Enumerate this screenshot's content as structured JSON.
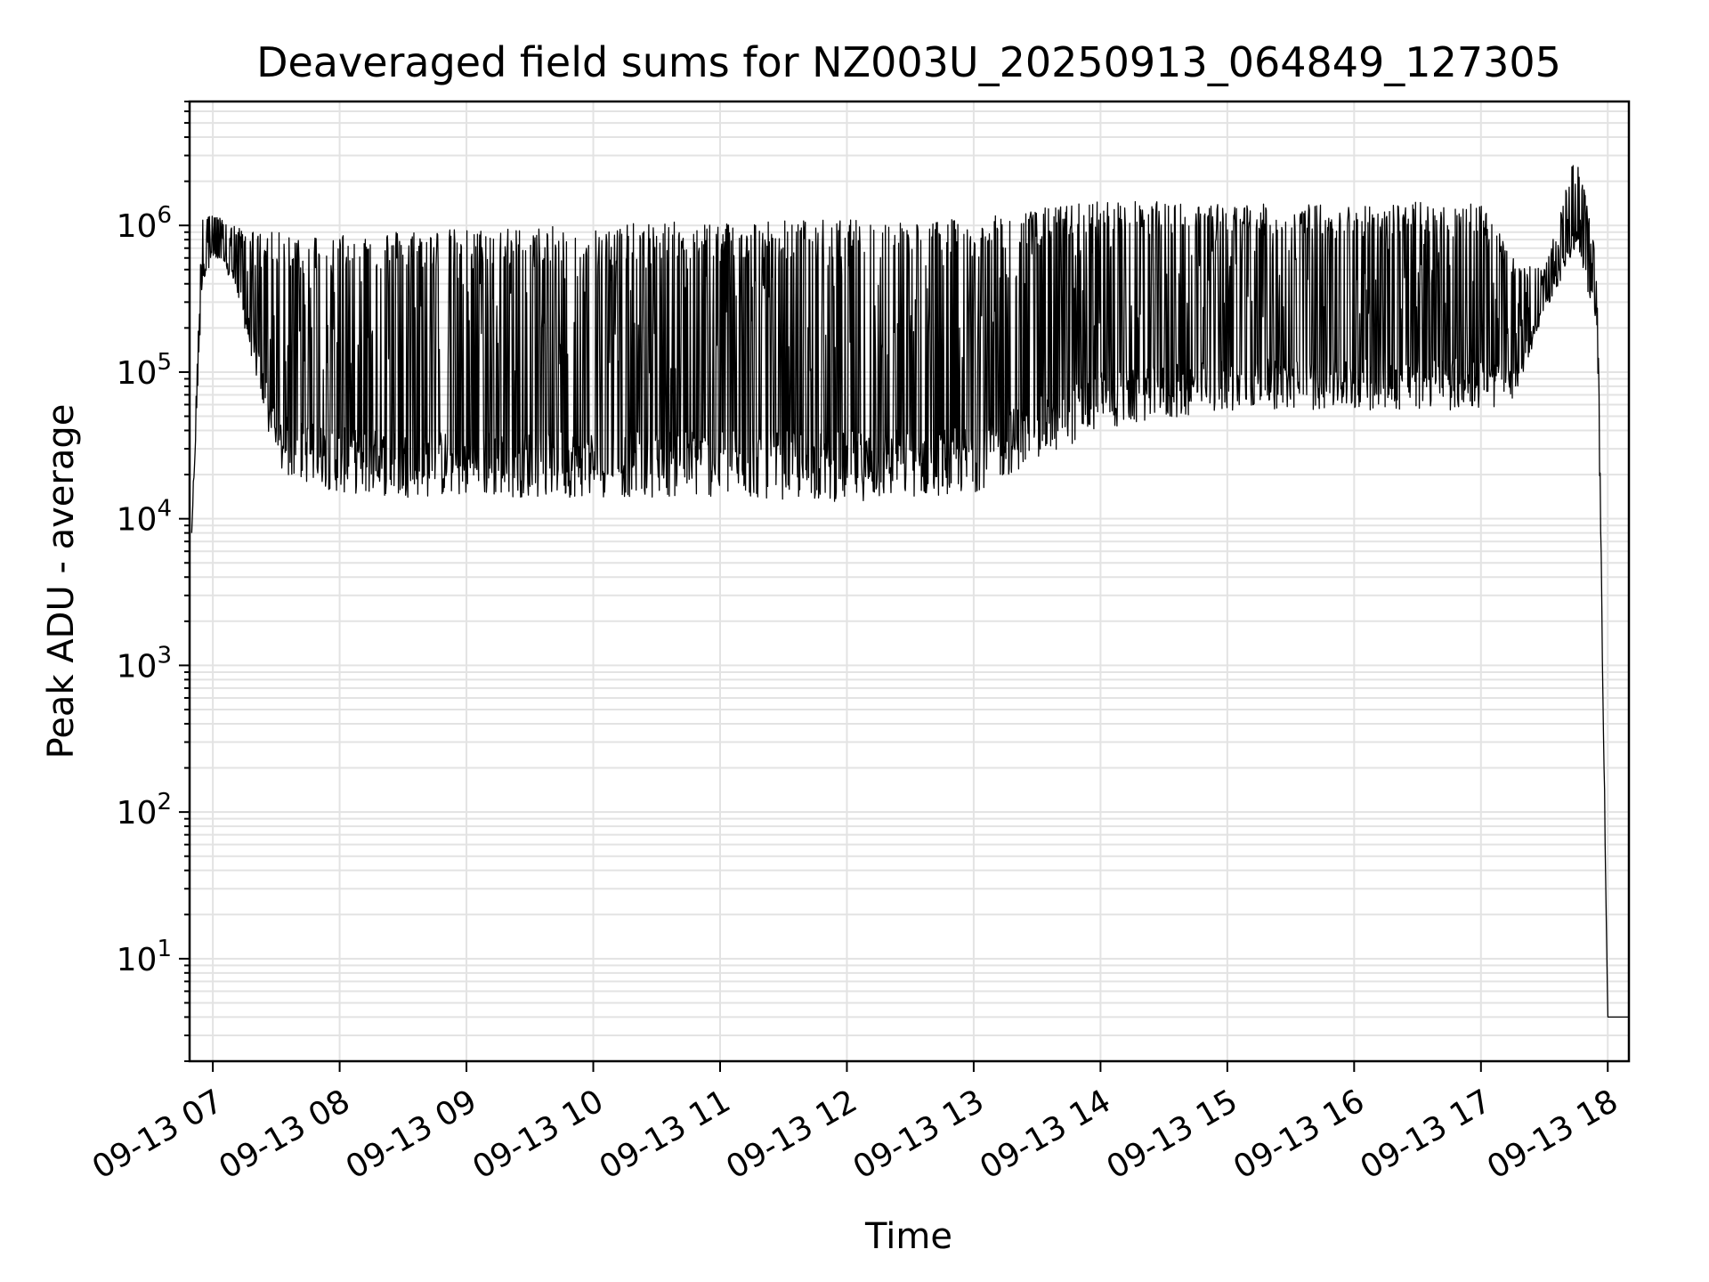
{
  "chart_data": {
    "type": "line",
    "title": "Deaveraged field sums for NZ003U_20250913_064849_127305",
    "xlabel": "Time",
    "ylabel": "Peak ADU - average",
    "yscale": "log",
    "ylim": [
      2,
      7000000
    ],
    "xlim": [
      "2025-09-13 06:49",
      "2025-09-13 18:10"
    ],
    "grid": "major and minor",
    "line_color": "#000000",
    "x_tick_labels": [
      "09-13 07",
      "09-13 08",
      "09-13 09",
      "09-13 10",
      "09-13 11",
      "09-13 12",
      "09-13 13",
      "09-13 14",
      "09-13 15",
      "09-13 16",
      "09-13 17",
      "09-13 18"
    ],
    "x_ticks": [
      "2025-09-13 07:00",
      "2025-09-13 08:00",
      "2025-09-13 09:00",
      "2025-09-13 10:00",
      "2025-09-13 11:00",
      "2025-09-13 12:00",
      "2025-09-13 13:00",
      "2025-09-13 14:00",
      "2025-09-13 15:00",
      "2025-09-13 16:00",
      "2025-09-13 17:00",
      "2025-09-13 18:00"
    ],
    "y_ticks": [
      10,
      100,
      1000,
      10000,
      100000,
      1000000
    ],
    "y_tick_labels": [
      {
        "base": "10",
        "exp": "1"
      },
      {
        "base": "10",
        "exp": "2"
      },
      {
        "base": "10",
        "exp": "3"
      },
      {
        "base": "10",
        "exp": "4"
      },
      {
        "base": "10",
        "exp": "5"
      },
      {
        "base": "10",
        "exp": "6"
      }
    ],
    "series": [
      {
        "envelope": {
          "x": [
            "2025-09-13 06:50",
            "2025-09-13 06:55",
            "2025-09-13 07:00",
            "2025-09-13 07:10",
            "2025-09-13 07:20",
            "2025-09-13 07:30",
            "2025-09-13 08:00",
            "2025-09-13 08:30",
            "2025-09-13 09:00",
            "2025-09-13 10:00",
            "2025-09-13 11:00",
            "2025-09-13 12:00",
            "2025-09-13 13:00",
            "2025-09-13 13:30",
            "2025-09-13 14:00",
            "2025-09-13 15:00",
            "2025-09-13 16:00",
            "2025-09-13 17:00",
            "2025-09-13 17:15",
            "2025-09-13 17:30",
            "2025-09-13 17:45",
            "2025-09-13 17:55",
            "2025-09-13 18:00",
            "2025-09-13 18:10"
          ],
          "low": [
            8000,
            400000,
            600000,
            400000,
            100000,
            20000,
            15000,
            14000,
            14000,
            14000,
            14000,
            13000,
            15000,
            25000,
            40000,
            55000,
            55000,
            55000,
            60000,
            250000,
            700000,
            200000,
            4,
            4
          ],
          "high": [
            8000,
            1400000,
            1200000,
            1000000,
            900000,
            900000,
            900000,
            950000,
            950000,
            1000000,
            1100000,
            1100000,
            1100000,
            1300000,
            1500000,
            1400000,
            1400000,
            1500000,
            600000,
            500000,
            3400000,
            600000,
            4,
            4
          ]
        }
      }
    ]
  }
}
